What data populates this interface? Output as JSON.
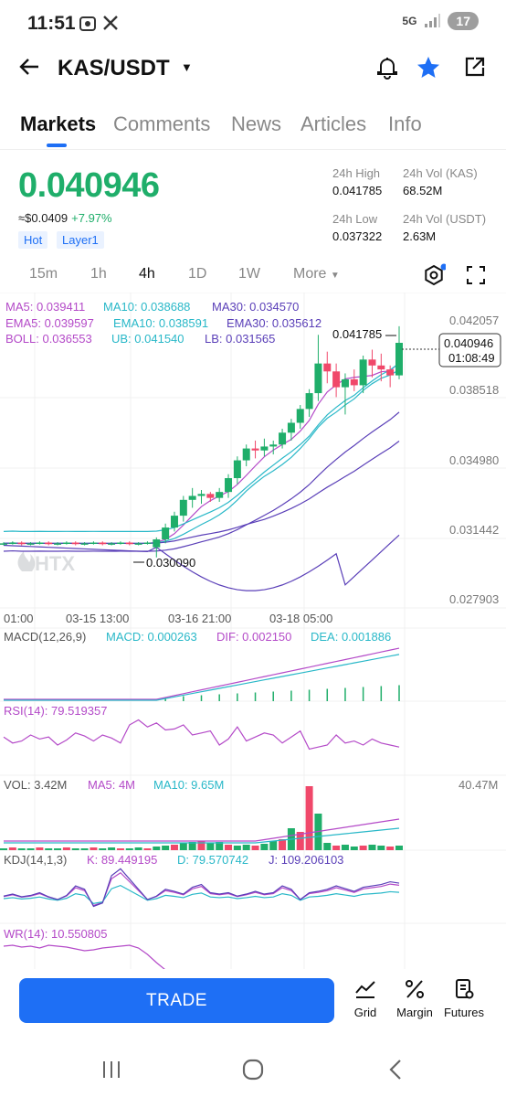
{
  "status_bar": {
    "time": "11:51",
    "net": "5G",
    "battery": "17"
  },
  "header": {
    "pair": "KAS/USDT"
  },
  "tabs": [
    "Markets",
    "Comments",
    "News",
    "Articles",
    "Info"
  ],
  "price": {
    "last": "0.040946",
    "approx": "≈$0.0409",
    "change": "+7.97%",
    "tags": [
      "Hot",
      "Layer1"
    ]
  },
  "stats": {
    "high_label": "24h High",
    "high_value": "0.041785",
    "vol_kas_label": "24h Vol (KAS)",
    "vol_kas_value": "68.52M",
    "low_label": "24h Low",
    "low_value": "0.037322",
    "vol_usdt_label": "24h Vol (USDT)",
    "vol_usdt_value": "2.63M"
  },
  "periods": [
    "15m",
    "1h",
    "4h",
    "1D",
    "1W",
    "More"
  ],
  "active_period": "4h",
  "indicators": {
    "ma5": "MA5: 0.039411",
    "ma10": "MA10: 0.038688",
    "ma30": "MA30: 0.034570",
    "ema5": "EMA5: 0.039597",
    "ema10": "EMA10: 0.038591",
    "ema30": "EMA30: 0.035612",
    "boll": "BOLL: 0.036553",
    "ub": "UB: 0.041540",
    "lb": "LB: 0.031565"
  },
  "y_axis": [
    "0.042057",
    "0.038518",
    "0.034980",
    "0.031442",
    "0.027903"
  ],
  "x_axis": [
    "01:00",
    "03-15 13:00",
    "03-16 21:00",
    "03-18 05:00"
  ],
  "annotations": {
    "high": "0.041785",
    "low": "0.030090",
    "current": "0.040946",
    "countdown": "01:08:49"
  },
  "watermark": "HTX",
  "macd": {
    "title": "MACD(12,26,9)",
    "macd": "MACD: 0.000263",
    "dif": "DIF: 0.002150",
    "dea": "DEA: 0.001886"
  },
  "rsi": {
    "title": "RSI(14): 79.519357"
  },
  "vol": {
    "vol": "VOL: 3.42M",
    "ma5": "MA5: 4M",
    "ma10": "MA10: 9.65M",
    "max": "40.47M"
  },
  "kdj": {
    "title": "KDJ(14,1,3)",
    "k": "K: 89.449195",
    "d": "D: 79.570742",
    "j": "J: 109.206103"
  },
  "wr": {
    "title": "WR(14): 10.550805"
  },
  "bottom": {
    "trade": "TRADE",
    "grid": "Grid",
    "margin": "Margin",
    "futures": "Futures"
  },
  "colors": {
    "up": "#1fae6a",
    "down": "#f0486a",
    "accent": "#1e6ff5",
    "ma_purple": "#b44ac8",
    "ma_teal": "#29b8c8",
    "ma_indigo": "#5a3fb8"
  }
}
